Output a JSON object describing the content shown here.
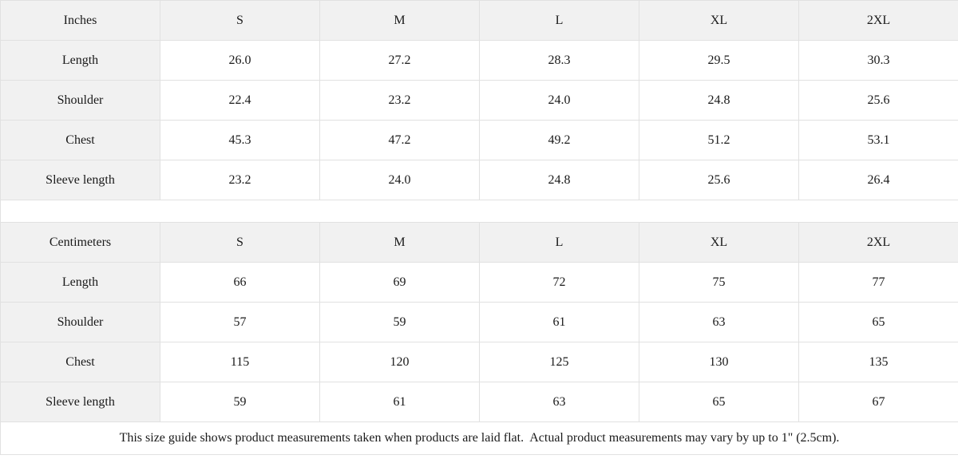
{
  "colors": {
    "header_bg": "#f1f1f1",
    "border": "#e1e1e1",
    "text": "#1a1a1a"
  },
  "inches_table": {
    "unit_label": "Inches",
    "sizes": [
      "S",
      "M",
      "L",
      "XL",
      "2XL"
    ],
    "rows": [
      {
        "label": "Length",
        "values": [
          "26.0",
          "27.2",
          "28.3",
          "29.5",
          "30.3"
        ]
      },
      {
        "label": "Shoulder",
        "values": [
          "22.4",
          "23.2",
          "24.0",
          "24.8",
          "25.6"
        ]
      },
      {
        "label": "Chest",
        "values": [
          "45.3",
          "47.2",
          "49.2",
          "51.2",
          "53.1"
        ]
      },
      {
        "label": "Sleeve length",
        "values": [
          "23.2",
          "24.0",
          "24.8",
          "25.6",
          "26.4"
        ]
      }
    ]
  },
  "cm_table": {
    "unit_label": "Centimeters",
    "sizes": [
      "S",
      "M",
      "L",
      "XL",
      "2XL"
    ],
    "rows": [
      {
        "label": "Length",
        "values": [
          "66",
          "69",
          "72",
          "75",
          "77"
        ]
      },
      {
        "label": "Shoulder",
        "values": [
          "57",
          "59",
          "61",
          "63",
          "65"
        ]
      },
      {
        "label": "Chest",
        "values": [
          "115",
          "120",
          "125",
          "130",
          "135"
        ]
      },
      {
        "label": "Sleeve length",
        "values": [
          "59",
          "61",
          "63",
          "65",
          "67"
        ]
      }
    ]
  },
  "footer_note": "This size guide shows product measurements taken when products are laid flat.  Actual product measurements may vary by up to 1\" (2.5cm)."
}
